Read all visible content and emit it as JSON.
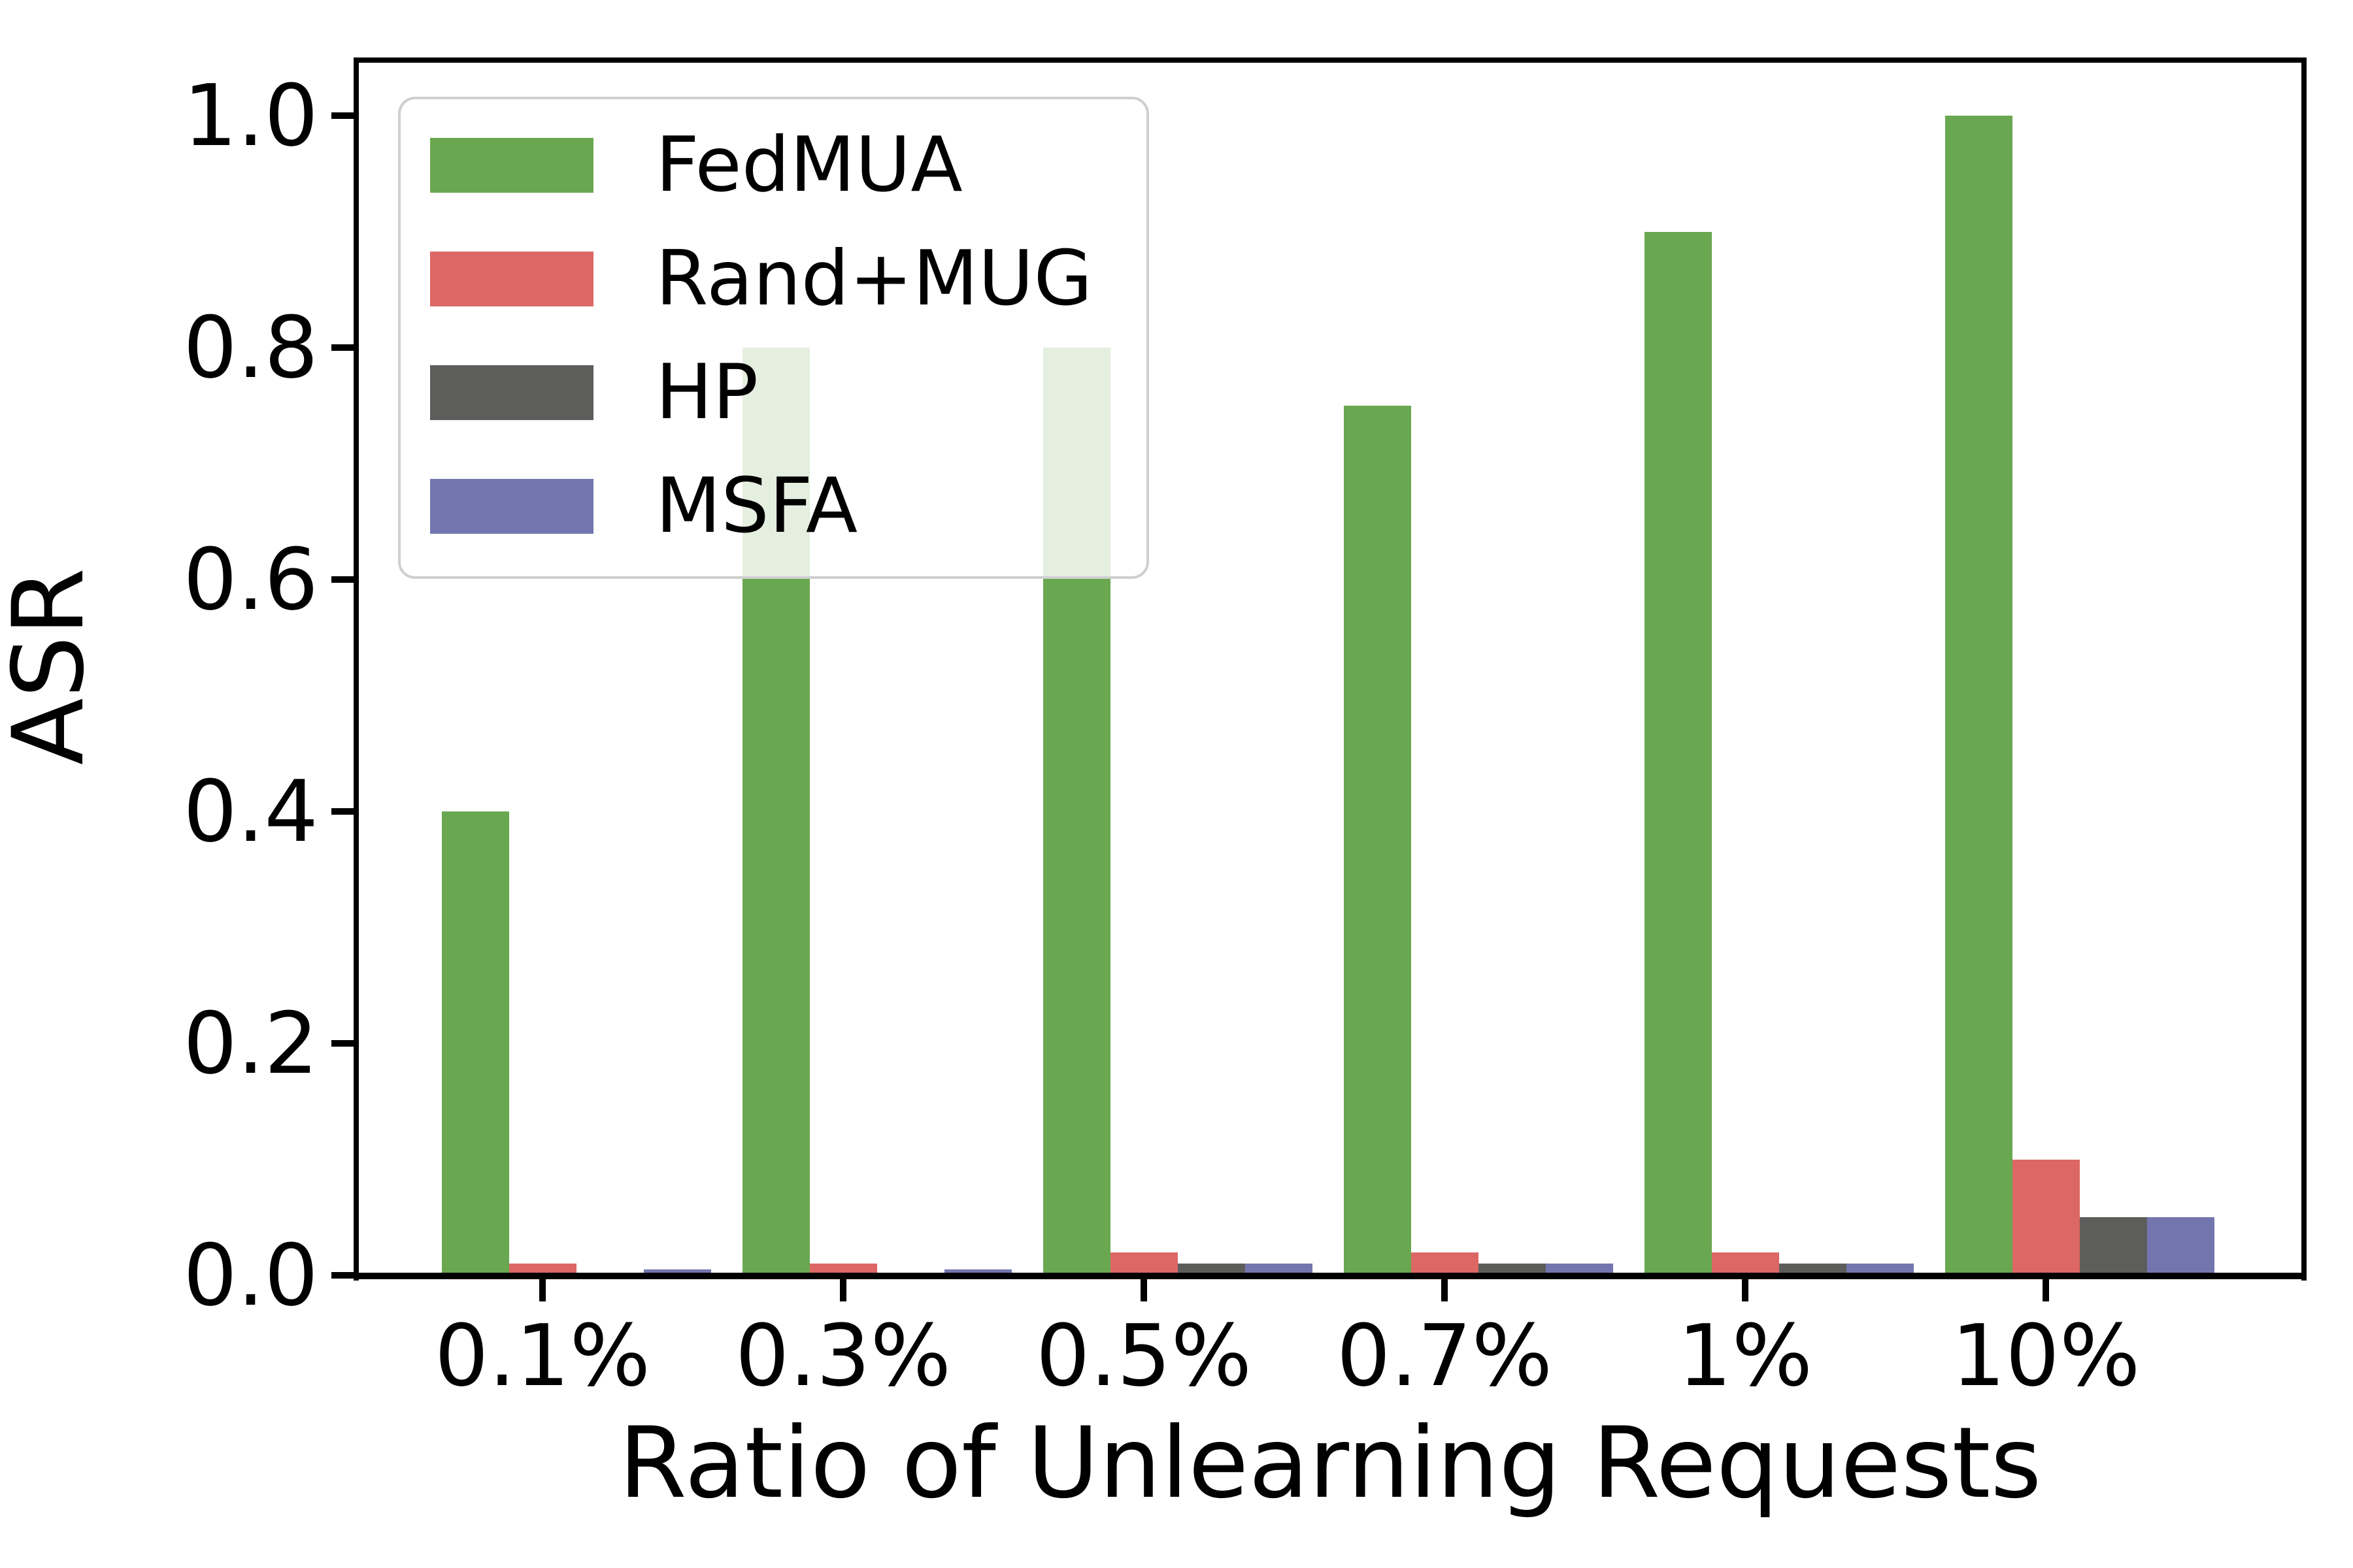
{
  "chart_data": {
    "type": "bar",
    "title": "",
    "xlabel": "Ratio of Unlearning Requests",
    "ylabel": "ASR",
    "categories": [
      "0.1%",
      "0.3%",
      "0.5%",
      "0.7%",
      "1%",
      "10%"
    ],
    "series": [
      {
        "name": "FedMUA",
        "color": "#6aa751",
        "values": [
          0.4,
          0.8,
          0.8,
          0.75,
          0.9,
          1.0
        ]
      },
      {
        "name": "Rand+MUG",
        "color": "#dc6765",
        "values": [
          0.01,
          0.01,
          0.02,
          0.02,
          0.02,
          0.1
        ]
      },
      {
        "name": "HP",
        "color": "#5d5e5c",
        "values": [
          0.0,
          0.0,
          0.01,
          0.01,
          0.01,
          0.05
        ]
      },
      {
        "name": "MSFA",
        "color": "#7376ae",
        "values": [
          0.005,
          0.005,
          0.01,
          0.01,
          0.01,
          0.05
        ]
      }
    ],
    "ylim": [
      0.0,
      1.05
    ],
    "yticks": [
      "0.0",
      "0.2",
      "0.4",
      "0.6",
      "0.8",
      "1.0"
    ],
    "grid": false,
    "legend_position": "upper left",
    "axis_color": "#000000",
    "legend_border_color": "#cfcfcf",
    "background_color": "#ffffff"
  }
}
